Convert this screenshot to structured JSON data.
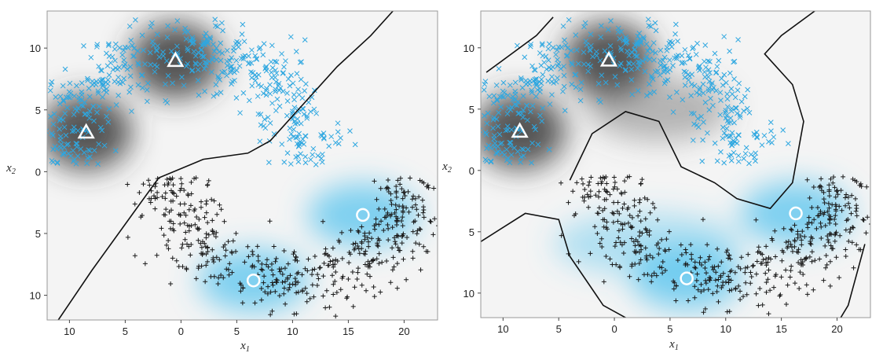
{
  "chart_data": [
    {
      "type": "scatter",
      "panel": "left",
      "xlabel_main": "x",
      "xlabel_sub": "1",
      "ylabel_main": "x",
      "ylabel_sub": "2",
      "xlim": [
        -12,
        23
      ],
      "ylim": [
        -12,
        13
      ],
      "x_ticks": [
        -10,
        -5,
        0,
        5,
        10,
        15,
        20
      ],
      "x_tick_labels": [
        "10",
        "5",
        "0",
        "5",
        "10",
        "15",
        "20"
      ],
      "y_ticks": [
        10,
        5,
        0,
        -5,
        -10
      ],
      "y_tick_labels": [
        "10",
        "5",
        "0",
        "5",
        "10"
      ],
      "series": [
        {
          "marker": "x",
          "color": "#2ea7e0",
          "shape": "upper-moon"
        },
        {
          "marker": "+",
          "color": "#1a1a1a",
          "shape": "lower-moon"
        }
      ],
      "centers": [
        {
          "marker": "triangle",
          "x": -0.5,
          "y": 9.0
        },
        {
          "marker": "triangle",
          "x": -8.5,
          "y": 3.2
        },
        {
          "marker": "circle",
          "x": 16.3,
          "y": -3.5
        },
        {
          "marker": "circle",
          "x": 6.5,
          "y": -8.8
        }
      ],
      "boundary": [
        [
          -11,
          -12
        ],
        [
          -8,
          -8
        ],
        [
          -4,
          -3
        ],
        [
          -2,
          -0.5
        ],
        [
          2,
          1
        ],
        [
          6,
          1.5
        ],
        [
          8,
          2.5
        ],
        [
          11,
          5.5
        ],
        [
          14,
          8.5
        ],
        [
          17,
          11
        ],
        [
          19,
          13
        ]
      ]
    },
    {
      "type": "scatter",
      "panel": "right",
      "xlabel_main": "x",
      "xlabel_sub": "1",
      "ylabel_main": "x",
      "ylabel_sub": "2",
      "xlim": [
        -12,
        23
      ],
      "ylim": [
        -12,
        13
      ],
      "x_ticks": [
        -10,
        -5,
        0,
        5,
        10,
        15,
        20
      ],
      "x_tick_labels": [
        "10",
        "5",
        "0",
        "5",
        "10",
        "15",
        "20"
      ],
      "y_ticks": [
        10,
        5,
        0,
        -5,
        -10
      ],
      "y_tick_labels": [
        "10",
        "5",
        "0",
        "5",
        "10"
      ],
      "series": [
        {
          "marker": "x",
          "color": "#2ea7e0",
          "shape": "upper-moon"
        },
        {
          "marker": "+",
          "color": "#1a1a1a",
          "shape": "lower-moon"
        }
      ],
      "centers": [
        {
          "marker": "triangle",
          "x": -0.5,
          "y": 9.0
        },
        {
          "marker": "triangle",
          "x": -8.5,
          "y": 3.2
        },
        {
          "marker": "circle",
          "x": 16.3,
          "y": -3.5
        },
        {
          "marker": "circle",
          "x": 6.5,
          "y": -8.8
        }
      ]
    }
  ]
}
